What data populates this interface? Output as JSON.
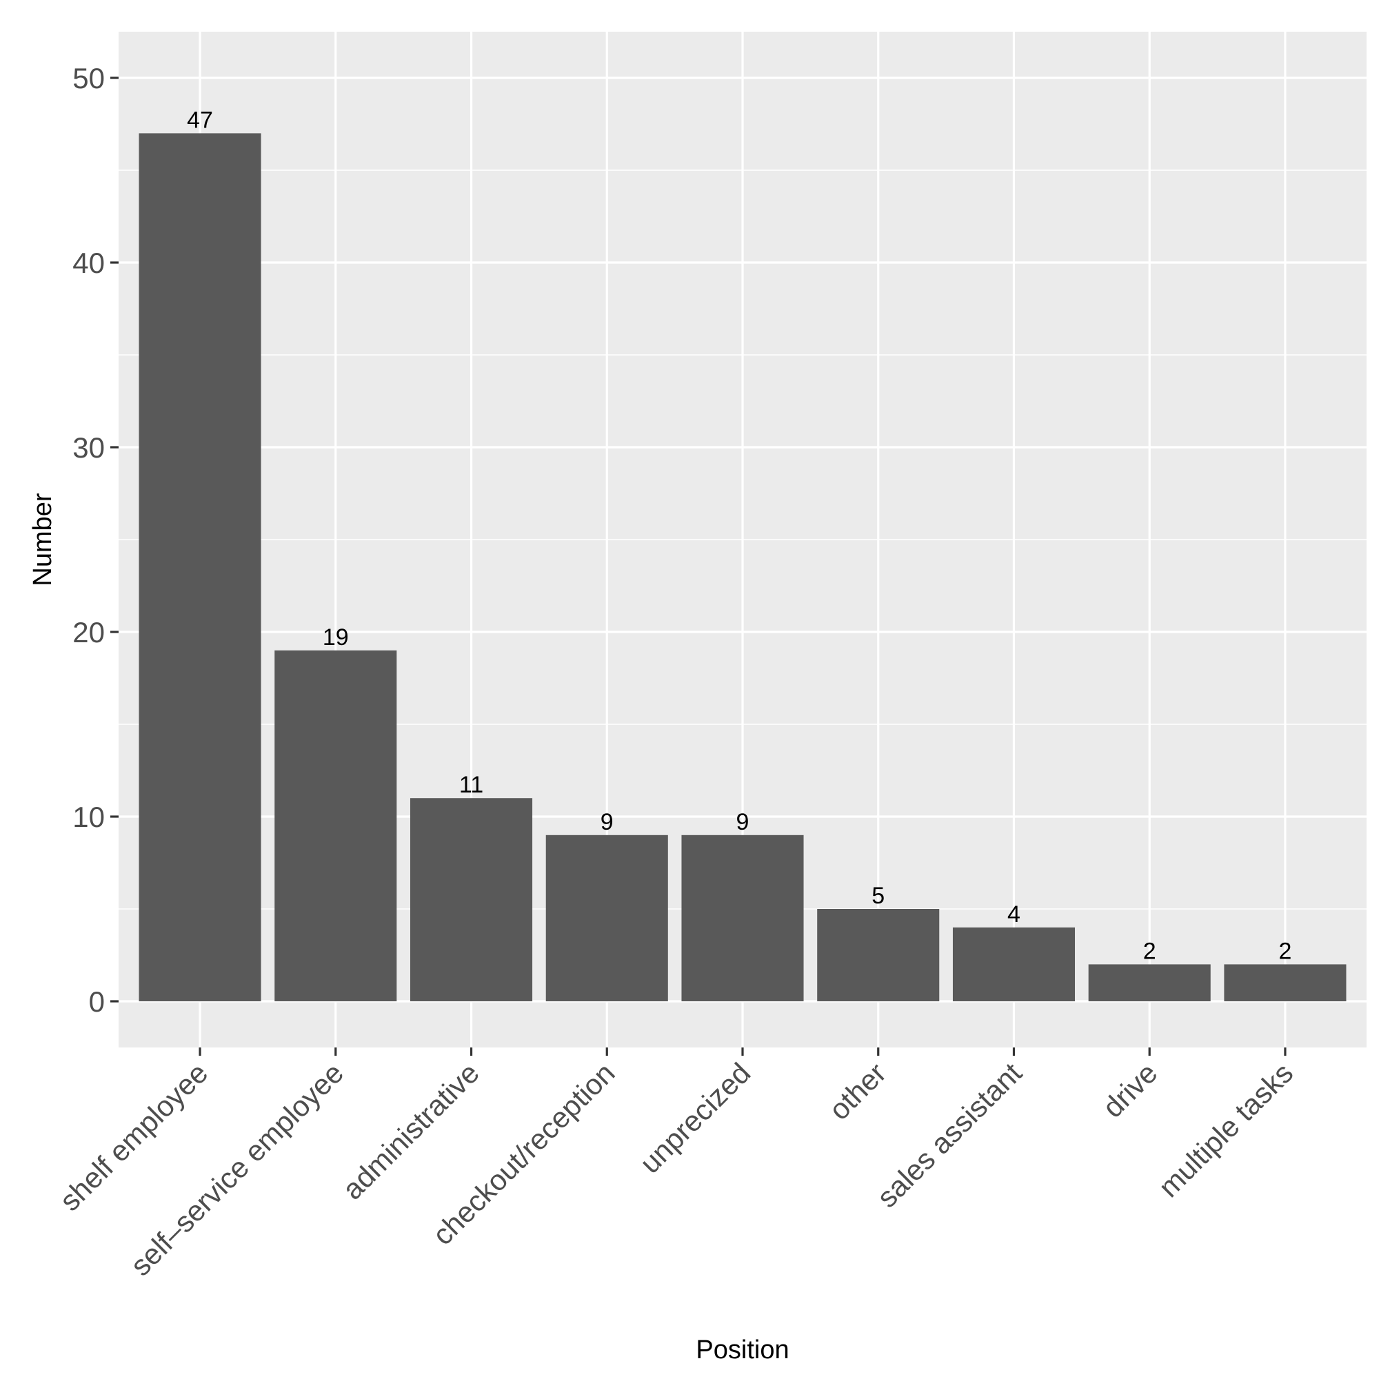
{
  "chart_data": {
    "type": "bar",
    "title": "",
    "xlabel": "Position",
    "ylabel": "Number",
    "categories": [
      "shelf employee",
      "self–service employee",
      "administrative",
      "checkout/reception",
      "unprecized",
      "other",
      "sales assistant",
      "drive",
      "multiple tasks"
    ],
    "values": [
      47,
      19,
      11,
      9,
      9,
      5,
      4,
      2,
      2
    ],
    "data_labels": [
      "47",
      "19",
      "11",
      "9",
      "9",
      "5",
      "4",
      "2",
      "2"
    ],
    "ylim": [
      -2.5,
      52.5
    ],
    "yticks": [
      0,
      10,
      20,
      30,
      40,
      50
    ],
    "ytick_labels": [
      "0",
      "10",
      "20",
      "30",
      "40",
      "50"
    ],
    "grid": true,
    "legend": "none",
    "colors": {
      "panel_background": "#EBEBEB",
      "grid": "#FFFFFF",
      "bar_fill": "#595959",
      "tick_label": "#4D4D4D",
      "axis_title": "#000000"
    }
  }
}
